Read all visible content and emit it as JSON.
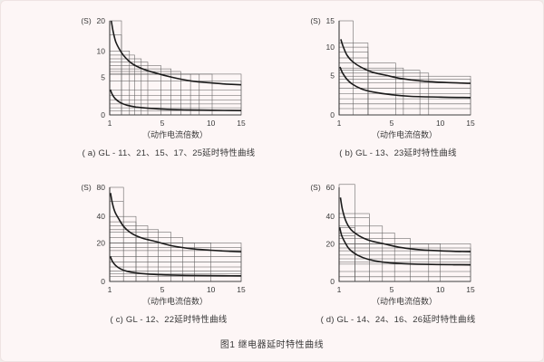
{
  "figure": {
    "title": "图1 继电器延时特性曲线",
    "x_axis_label": "（动作电流倍数）",
    "y_axis_unit": "(S)",
    "x_ticks": [
      1,
      5,
      10,
      15
    ],
    "x_scale_fracs": [
      [
        1,
        0
      ],
      [
        5,
        0.4
      ],
      [
        10,
        0.77
      ],
      [
        15,
        1
      ]
    ],
    "colors": {
      "background": "#fdf6f6",
      "border": "#efe4e3",
      "axis": "#3d3d3d",
      "grid": "#5f5f5f",
      "curve": "#1b1b1b",
      "text": "#3a3a3a"
    }
  },
  "chart_data": [
    {
      "id": "a",
      "type": "line",
      "caption": "( a) GL - 11、21、15、17、25延时特性曲线",
      "y_max": 20,
      "y_ticks": [
        0,
        5,
        10,
        20
      ],
      "y_scale_stops": [
        [
          0,
          0
        ],
        [
          5,
          0.4
        ],
        [
          10,
          0.68
        ],
        [
          15,
          0.85
        ],
        [
          20,
          1
        ]
      ],
      "step_rects": [
        [
          1.9,
          20
        ],
        [
          1.9,
          15
        ],
        [
          2.5,
          10
        ],
        [
          2.9,
          9.2
        ],
        [
          3.4,
          8.5
        ],
        [
          3.9,
          7.9
        ],
        [
          4.9,
          7.2
        ],
        [
          5.9,
          6.6
        ],
        [
          6.9,
          6.1
        ],
        [
          7.9,
          5.6
        ],
        [
          8.8,
          5.6
        ],
        [
          10.2,
          5.6
        ],
        [
          15,
          5.6
        ],
        [
          15,
          4.5
        ]
      ],
      "band_lines": [
        3.3,
        2.6,
        2.0,
        1.45,
        0.95,
        0.55
      ],
      "upper_curve": [
        [
          1.12,
          20
        ],
        [
          1.25,
          16.5
        ],
        [
          1.45,
          13
        ],
        [
          1.7,
          10.8
        ],
        [
          2.1,
          9.0
        ],
        [
          2.7,
          7.6
        ],
        [
          3.5,
          6.6
        ],
        [
          4.5,
          5.8
        ],
        [
          6,
          5.0
        ],
        [
          8,
          4.5
        ],
        [
          10,
          4.25
        ],
        [
          12.5,
          4.1
        ],
        [
          15,
          4.0
        ]
      ],
      "lower_curve": [
        [
          1.05,
          3.35
        ],
        [
          1.2,
          2.7
        ],
        [
          1.45,
          2.1
        ],
        [
          1.8,
          1.65
        ],
        [
          2.3,
          1.3
        ],
        [
          3,
          1.05
        ],
        [
          4,
          0.88
        ],
        [
          5.5,
          0.75
        ],
        [
          7.5,
          0.67
        ],
        [
          10,
          0.62
        ],
        [
          15,
          0.58
        ]
      ]
    },
    {
      "id": "b",
      "type": "line",
      "caption": "( b) GL - 13、23延时特性曲线",
      "y_max": 15,
      "y_ticks": [
        0,
        5,
        10,
        15
      ],
      "y_scale_stops": [
        [
          0,
          0
        ],
        [
          5,
          0.42
        ],
        [
          10,
          0.72
        ],
        [
          15,
          1
        ]
      ],
      "step_rects": [
        [
          2.06,
          15
        ],
        [
          3.2,
          10.8
        ],
        [
          3.2,
          10
        ],
        [
          3.2,
          9.1
        ],
        [
          3.2,
          8.1
        ],
        [
          5.4,
          7.2
        ],
        [
          6.2,
          6.3
        ],
        [
          7.9,
          5.9
        ],
        [
          8.8,
          5.4
        ],
        [
          15,
          4.9
        ],
        [
          15,
          4.5
        ]
      ],
      "band_lines": [
        4.05,
        3.4,
        2.7,
        2.05,
        1.4,
        0.8
      ],
      "upper_curve": [
        [
          1.13,
          11.5
        ],
        [
          1.3,
          10.2
        ],
        [
          1.6,
          8.6
        ],
        [
          2.05,
          7.4
        ],
        [
          2.7,
          6.4
        ],
        [
          3.5,
          5.6
        ],
        [
          4.6,
          5.0
        ],
        [
          6,
          4.6
        ],
        [
          8,
          4.3
        ],
        [
          11,
          4.1
        ],
        [
          15,
          4.0
        ]
      ],
      "lower_curve": [
        [
          1.07,
          6.5
        ],
        [
          1.25,
          5.5
        ],
        [
          1.55,
          4.6
        ],
        [
          2,
          3.9
        ],
        [
          2.7,
          3.3
        ],
        [
          3.6,
          2.9
        ],
        [
          5,
          2.55
        ],
        [
          7,
          2.35
        ],
        [
          10,
          2.25
        ],
        [
          15,
          2.2
        ]
      ]
    },
    {
      "id": "c",
      "type": "line",
      "caption": "( c) GL - 12、22延时特性曲线",
      "y_max": 80,
      "y_ticks": [
        0,
        20,
        40,
        80
      ],
      "y_scale_stops": [
        [
          0,
          0
        ],
        [
          20,
          0.41
        ],
        [
          40,
          0.69
        ],
        [
          60,
          0.85
        ],
        [
          80,
          1
        ]
      ],
      "step_rects": [
        [
          2.05,
          80
        ],
        [
          2.05,
          60
        ],
        [
          3.0,
          40
        ],
        [
          3.0,
          36
        ],
        [
          3.9,
          33
        ],
        [
          4.7,
          30
        ],
        [
          5.9,
          28
        ],
        [
          7.1,
          24
        ],
        [
          8.3,
          20
        ],
        [
          10,
          20
        ],
        [
          15,
          20
        ],
        [
          15,
          17.5
        ],
        [
          15,
          16
        ]
      ],
      "band_lines": [
        13,
        10,
        7.5,
        5.5,
        4,
        2.6
      ],
      "upper_curve": [
        [
          1.06,
          72
        ],
        [
          1.2,
          58
        ],
        [
          1.4,
          46
        ],
        [
          1.7,
          38
        ],
        [
          2.1,
          32
        ],
        [
          2.7,
          27
        ],
        [
          3.5,
          23.5
        ],
        [
          4.5,
          21
        ],
        [
          6,
          18.5
        ],
        [
          8,
          17
        ],
        [
          10,
          16.2
        ],
        [
          12.5,
          15.7
        ],
        [
          15,
          15.4
        ]
      ],
      "lower_curve": [
        [
          1.05,
          13
        ],
        [
          1.2,
          10.5
        ],
        [
          1.45,
          8.3
        ],
        [
          1.8,
          6.6
        ],
        [
          2.3,
          5.3
        ],
        [
          3,
          4.4
        ],
        [
          4,
          3.8
        ],
        [
          5.5,
          3.4
        ],
        [
          7.5,
          3.15
        ],
        [
          10,
          3.0
        ],
        [
          15,
          2.9
        ]
      ]
    },
    {
      "id": "d",
      "type": "line",
      "caption": "( d) GL - 14、24、16、26延时特性曲线",
      "y_max": 60,
      "y_ticks": [
        0,
        20,
        40,
        60
      ],
      "y_scale_stops": [
        [
          0,
          0
        ],
        [
          20,
          0.4
        ],
        [
          40,
          0.69
        ],
        [
          60,
          1
        ]
      ],
      "step_rects": [
        [
          2.2,
          62
        ],
        [
          2.2,
          32
        ],
        [
          2.2,
          26
        ],
        [
          3.3,
          42
        ],
        [
          3.3,
          39
        ],
        [
          4.3,
          33
        ],
        [
          5.3,
          28
        ],
        [
          6.9,
          24
        ],
        [
          8.8,
          20
        ],
        [
          10,
          20
        ],
        [
          15,
          20
        ],
        [
          15,
          17.8
        ],
        [
          15,
          16.3
        ]
      ],
      "band_lines": [
        14,
        12,
        10.3,
        9.2,
        5.3,
        2.5
      ],
      "upper_curve": [
        [
          1.1,
          53
        ],
        [
          1.25,
          45
        ],
        [
          1.5,
          37
        ],
        [
          1.9,
          30.5
        ],
        [
          2.5,
          26
        ],
        [
          3.3,
          22.5
        ],
        [
          4.4,
          20
        ],
        [
          6,
          18
        ],
        [
          8,
          16.8
        ],
        [
          10.5,
          16.2
        ],
        [
          15,
          15.8
        ]
      ],
      "lower_curve": [
        [
          1.05,
          32
        ],
        [
          1.2,
          26
        ],
        [
          1.45,
          21
        ],
        [
          1.8,
          17
        ],
        [
          2.4,
          14
        ],
        [
          3.2,
          11.8
        ],
        [
          4.3,
          10.3
        ],
        [
          6,
          9.5
        ],
        [
          8.5,
          9.1
        ],
        [
          12,
          8.9
        ],
        [
          15,
          8.8
        ]
      ]
    }
  ]
}
